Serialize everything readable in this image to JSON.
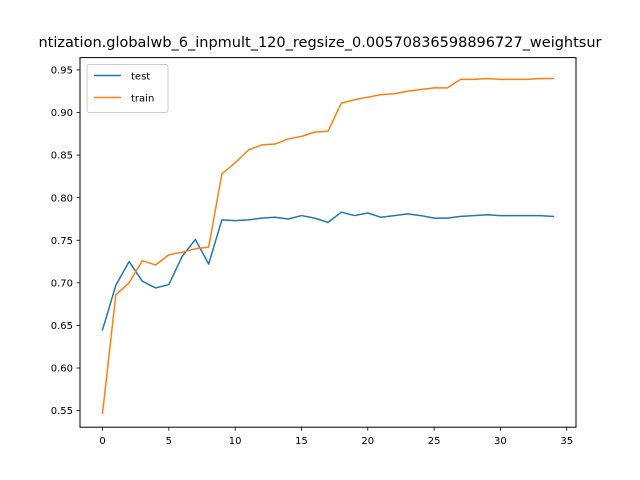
{
  "chart_data": {
    "type": "line",
    "title": "ntization.globalwb_6_inpmult_120_regsize_0.00570836598896727_weightsur",
    "xlabel": "",
    "ylabel": "",
    "xlim": [
      -1.7,
      35.7
    ],
    "ylim": [
      0.5305,
      0.9645
    ],
    "xticks": [
      0,
      5,
      10,
      15,
      20,
      25,
      30,
      35
    ],
    "xtick_labels": [
      "0",
      "5",
      "10",
      "15",
      "20",
      "25",
      "30",
      "35"
    ],
    "yticks": [
      0.55,
      0.6,
      0.65,
      0.7,
      0.75,
      0.8,
      0.85,
      0.9,
      0.95
    ],
    "ytick_labels": [
      "0.55",
      "0.60",
      "0.65",
      "0.70",
      "0.75",
      "0.80",
      "0.85",
      "0.90",
      "0.95"
    ],
    "grid": false,
    "legend": "top-left",
    "x": [
      0,
      1,
      2,
      3,
      4,
      5,
      6,
      7,
      8,
      9,
      10,
      11,
      12,
      13,
      14,
      15,
      16,
      17,
      18,
      19,
      20,
      21,
      22,
      23,
      24,
      25,
      26,
      27,
      28,
      29,
      30,
      31,
      32,
      33,
      34
    ],
    "series": [
      {
        "name": "test",
        "color": "#1f77b4",
        "values": [
          0.645,
          0.697,
          0.725,
          0.702,
          0.694,
          0.698,
          0.731,
          0.751,
          0.722,
          0.774,
          0.773,
          0.774,
          0.776,
          0.777,
          0.775,
          0.779,
          0.776,
          0.771,
          0.783,
          0.779,
          0.782,
          0.777,
          0.779,
          0.781,
          0.779,
          0.776,
          0.776,
          0.778,
          0.779,
          0.78,
          0.779,
          0.779,
          0.779,
          0.779,
          0.778
        ]
      },
      {
        "name": "train",
        "color": "#ff7f0e",
        "values": [
          0.547,
          0.686,
          0.7,
          0.726,
          0.721,
          0.733,
          0.736,
          0.74,
          0.742,
          0.828,
          0.841,
          0.856,
          0.862,
          0.863,
          0.869,
          0.872,
          0.877,
          0.878,
          0.911,
          0.915,
          0.918,
          0.921,
          0.922,
          0.925,
          0.927,
          0.929,
          0.929,
          0.939,
          0.939,
          0.94,
          0.939,
          0.939,
          0.939,
          0.94,
          0.94
        ]
      }
    ]
  }
}
